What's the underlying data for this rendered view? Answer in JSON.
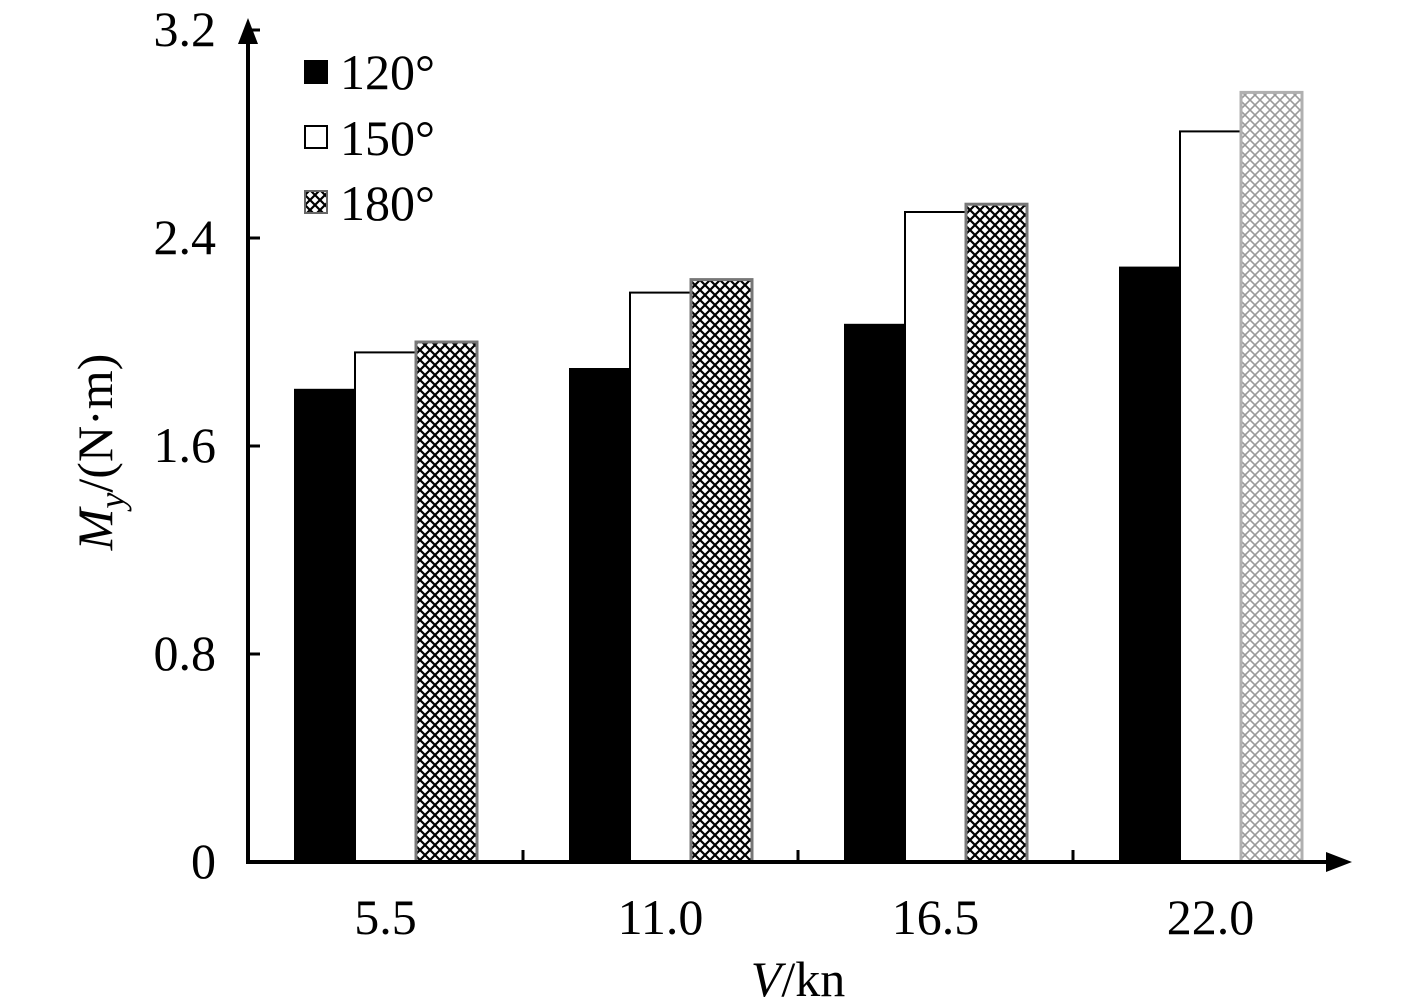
{
  "chart_data": {
    "type": "bar",
    "title": "",
    "categories": [
      "5.5",
      "11.0",
      "16.5",
      "22.0"
    ],
    "series": [
      {
        "name": "120°",
        "values": [
          1.82,
          1.9,
          2.07,
          2.29
        ],
        "fill": "solid",
        "color": "#000000"
      },
      {
        "name": "150°",
        "values": [
          1.96,
          2.19,
          2.5,
          2.81
        ],
        "fill": "hollow",
        "color": "#ffffff"
      },
      {
        "name": "180°",
        "values": [
          2.0,
          2.24,
          2.53,
          2.96
        ],
        "fill": "crosshatch",
        "color": "#000000"
      }
    ],
    "yticks": [
      "0",
      "0.8",
      "1.6",
      "2.4",
      "3.2"
    ],
    "ylim": [
      0,
      3.2
    ],
    "xlabel": {
      "italic": "V",
      "rest": "/kn"
    },
    "ylabel": {
      "italic": "M",
      "sub": "y",
      "rest": "/(N·m)"
    },
    "legend_position": "top-left",
    "grid": false
  }
}
